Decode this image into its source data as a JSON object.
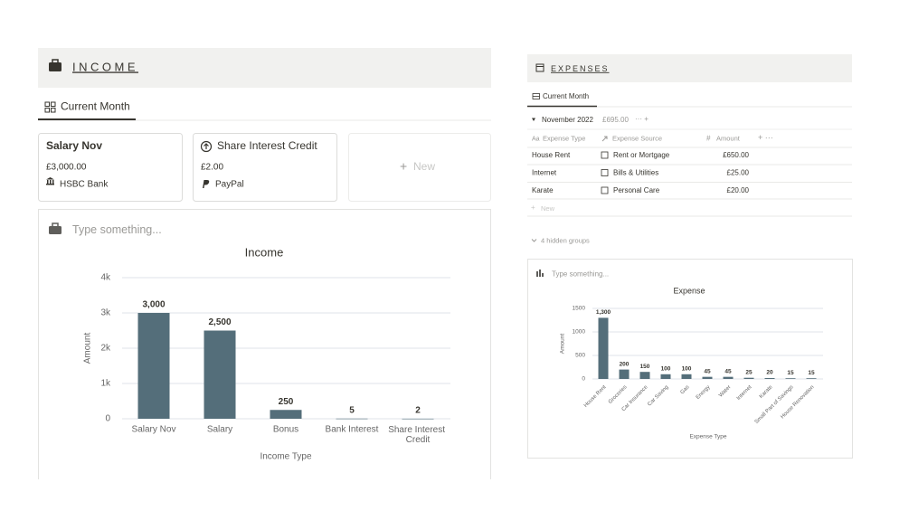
{
  "income": {
    "title": "INCOME",
    "tab": "Current Month",
    "cards": [
      {
        "name": "Salary Nov",
        "amount": "£3,000.00",
        "source": "HSBC Bank"
      },
      {
        "name": "Share Interest Credit",
        "amount": "£2.00",
        "source": "PayPal"
      }
    ],
    "new": "New",
    "placeholder": "Type something..."
  },
  "expenses": {
    "title": "EXPENSES",
    "tab": "Current Month",
    "group": {
      "name": "November 2022",
      "total": "£695.00"
    },
    "columns": [
      "Expense Type",
      "Expense Source",
      "Amount"
    ],
    "rows": [
      [
        "House Rent",
        "Rent or Mortgage",
        "£650.00"
      ],
      [
        "Internet",
        "Bills & Utilities",
        "£25.00"
      ],
      [
        "Karate",
        "Personal Care",
        "£20.00"
      ]
    ],
    "new": "New",
    "hidden": "4 hidden groups",
    "placeholder": "Type something..."
  },
  "chart_data": [
    {
      "type": "bar",
      "title": "Income",
      "x_label": "Income Type",
      "y_label": "Amount",
      "categories": [
        "Salary Nov",
        "Salary",
        "Bonus",
        "Bank Interest",
        "Share Interest Credit"
      ],
      "values": [
        3000,
        2500,
        250,
        5,
        2
      ],
      "value_labels": [
        "3,000",
        "2,500",
        "250",
        "5",
        "2"
      ],
      "color": "#546e7a",
      "ylim": [
        0,
        4000
      ],
      "yticks": [
        0,
        {
          "value": 1000,
          "label": "1k"
        },
        {
          "value": 2000,
          "label": "2k"
        },
        {
          "value": 3000,
          "label": "3k"
        },
        {
          "value": 4000,
          "label": "4k"
        }
      ],
      "grid": true
    },
    {
      "type": "bar",
      "title": "Expense",
      "x_label": "Expense Type",
      "y_label": "Amount",
      "categories": [
        "House Rent",
        "Groceries",
        "Car Insurance",
        "Car Saving",
        "Gas",
        "Energy",
        "Water",
        "Internet",
        "Karate",
        "Small Part of Savings",
        "House Renovation"
      ],
      "values": [
        1300,
        200,
        150,
        100,
        100,
        45,
        45,
        25,
        20,
        15,
        15
      ],
      "value_labels": [
        "1,300",
        "200",
        "150",
        "100",
        "100",
        "45",
        "45",
        "25",
        "20",
        "15",
        "15"
      ],
      "color": "#546e7a",
      "ylim": [
        0,
        1500
      ],
      "yticks": [
        0,
        500,
        1000,
        1500
      ],
      "grid": true
    }
  ]
}
